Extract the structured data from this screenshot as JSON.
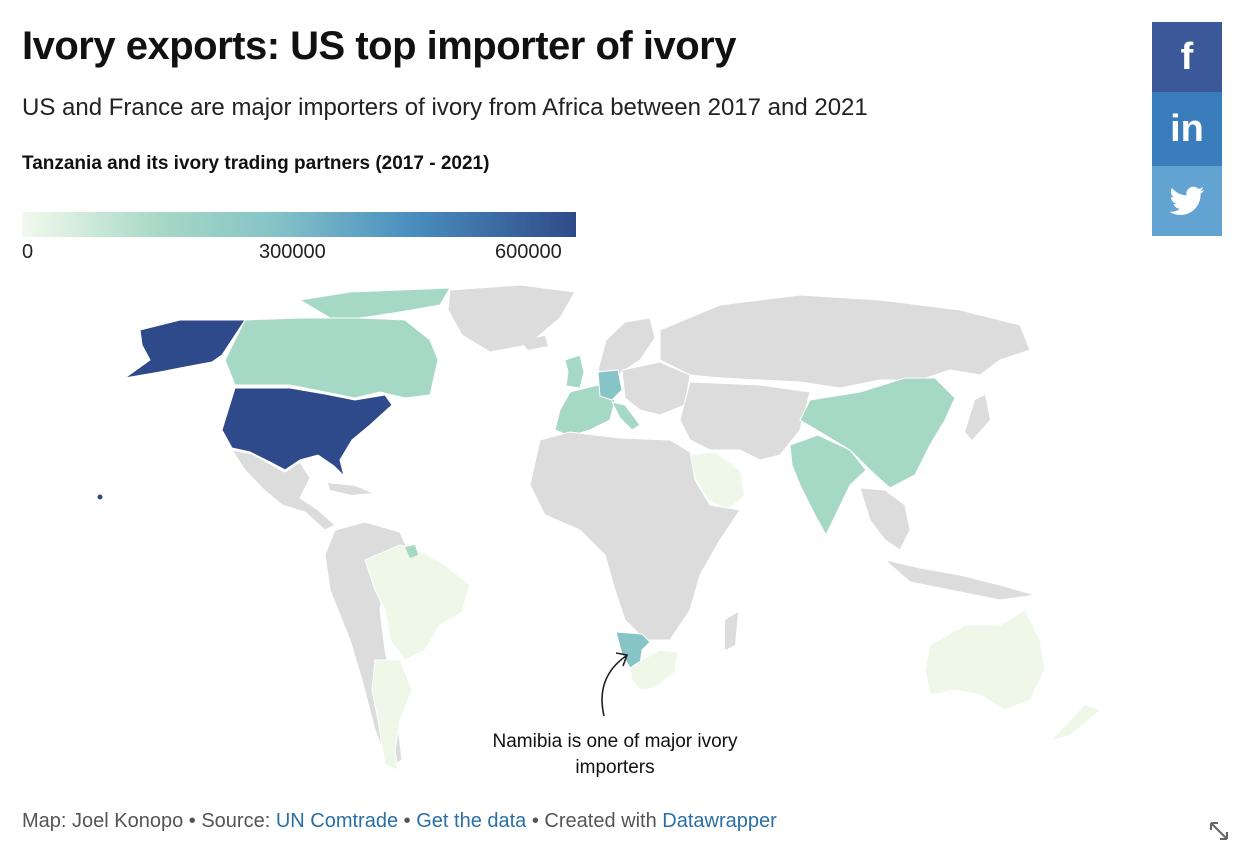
{
  "header": {
    "title": "Ivory exports: US top importer of ivory",
    "subtitle": "US and France are major importers of ivory from Africa between 2017 and 2021"
  },
  "legend": {
    "title": "Tanzania and its ivory trading partners (2017 - 2021)",
    "ticks": [
      "0",
      "300000",
      "600000"
    ],
    "range": [
      0,
      600000
    ],
    "colors": [
      "#f2f9ee",
      "#a6d8c6",
      "#86c4c7",
      "#4a8fc0",
      "#2f4a8a"
    ]
  },
  "social": {
    "facebook_icon": "f",
    "linkedin_icon": "in",
    "twitter_icon": "twitter-bird"
  },
  "map": {
    "annotation": "Namibia is one of major ivory importers",
    "colors": {
      "no_data": "#dcdcdc",
      "usa": "#2f4a8a",
      "high_mid": "#86c4c7",
      "mid": "#a6d8c6",
      "low": "#eef7e8"
    }
  },
  "footer": {
    "prefix": "Map: Joel Konopo • Source: ",
    "source_link": "UN Comtrade",
    "sep1": " • ",
    "data_link": "Get the data",
    "sep2": " • Created with ",
    "tool_link": "Datawrapper"
  }
}
